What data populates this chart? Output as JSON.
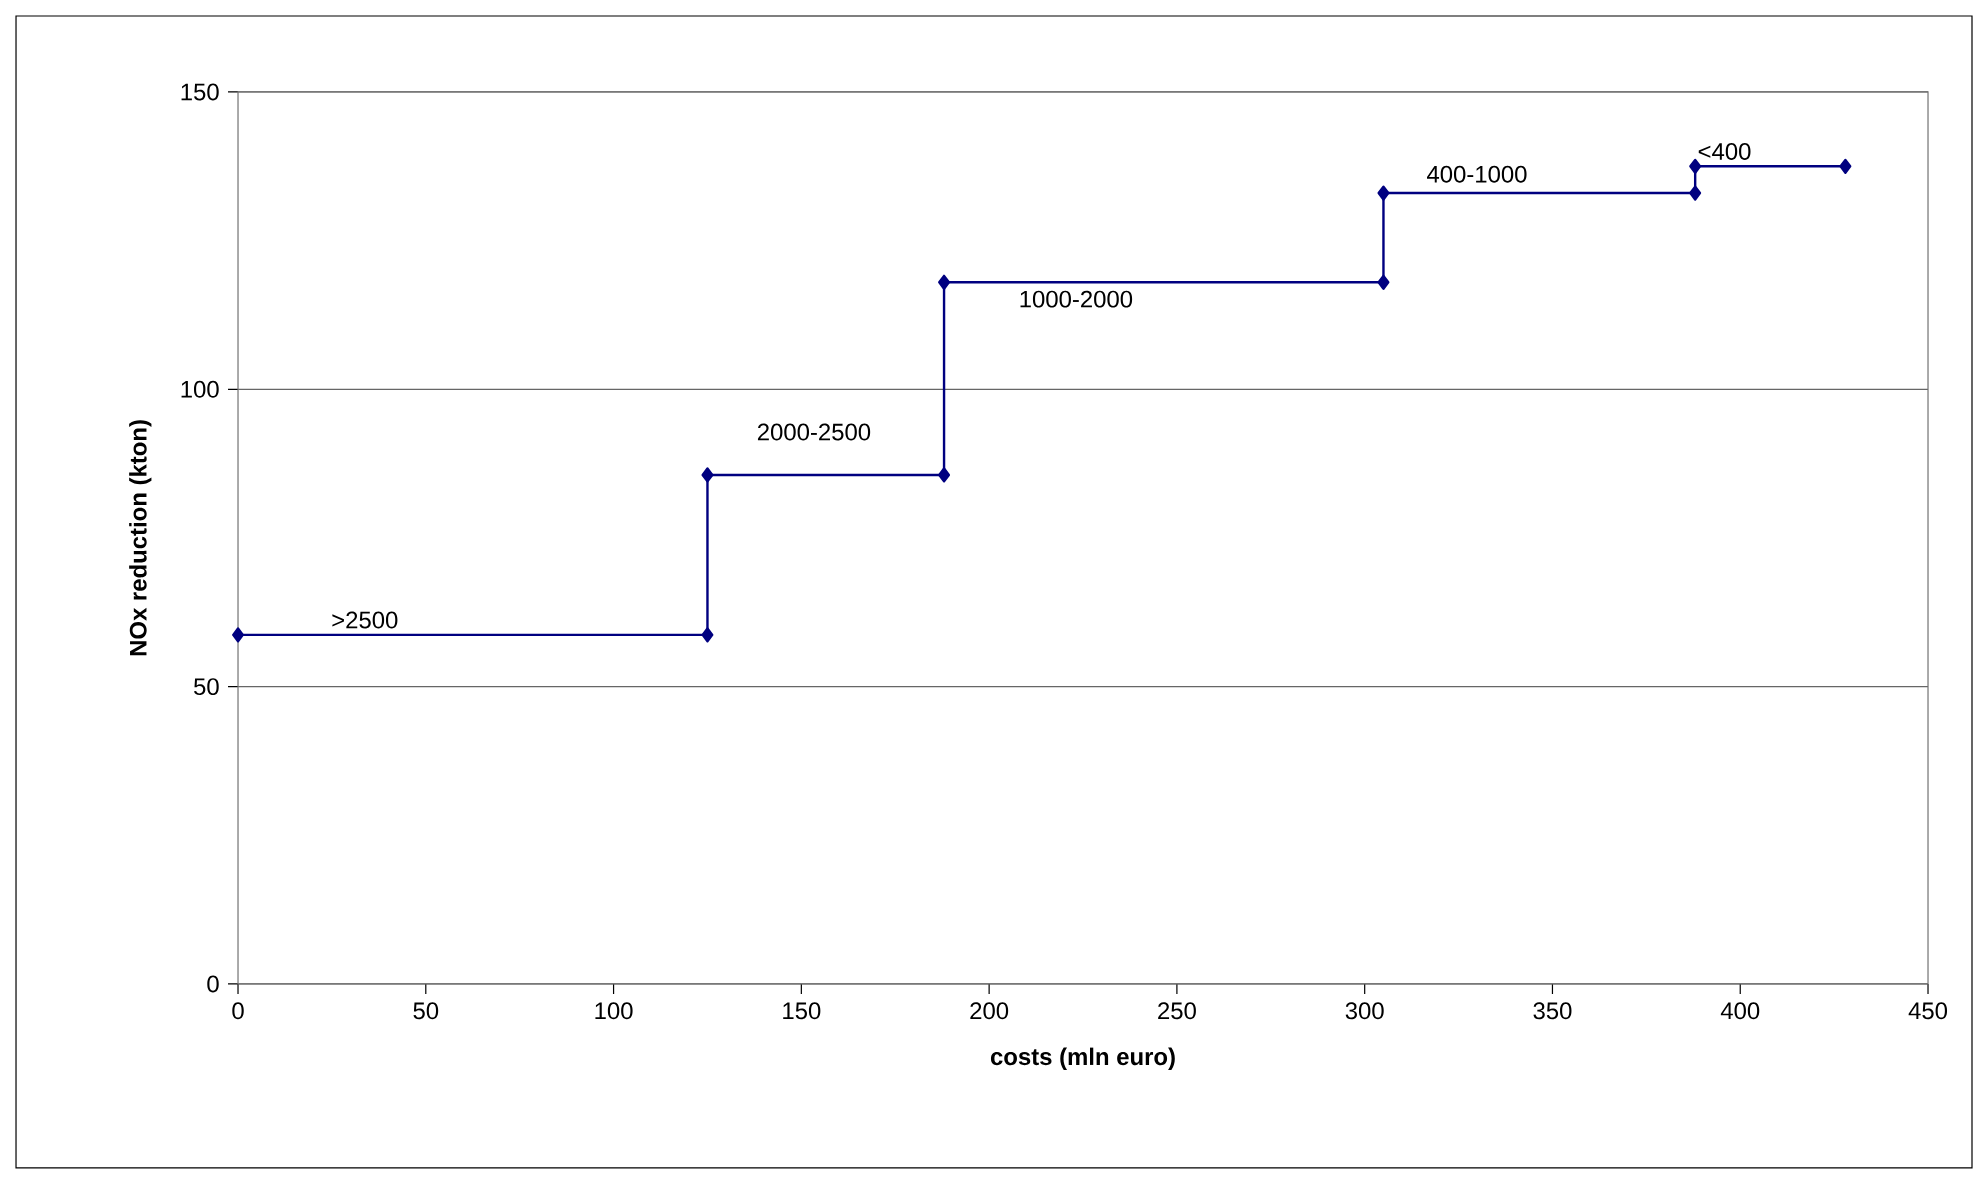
{
  "chart_data": {
    "type": "line",
    "xlabel": "costs (mln euro)",
    "ylabel": "NOx reduction (kton)",
    "x": [
      0,
      125,
      125,
      188,
      188,
      305,
      305,
      388,
      388,
      428
    ],
    "series": [
      {
        "color": "#000080",
        "values": [
          58.7,
          58.7,
          85.6,
          85.6,
          118,
          118,
          133,
          133,
          137.5,
          137.5
        ]
      }
    ],
    "xlim": [
      0,
      450
    ],
    "xticks": [
      0,
      50,
      100,
      150,
      200,
      250,
      300,
      350,
      400,
      450
    ],
    "ylim": [
      0,
      150
    ],
    "yticks": [
      0,
      50,
      100,
      150
    ],
    "grid": "y",
    "marker": "diamond",
    "line_style": "solid",
    "annotations": [
      ">2500",
      "2000-2500",
      "1000-2000",
      "400-1000",
      "<400"
    ]
  }
}
